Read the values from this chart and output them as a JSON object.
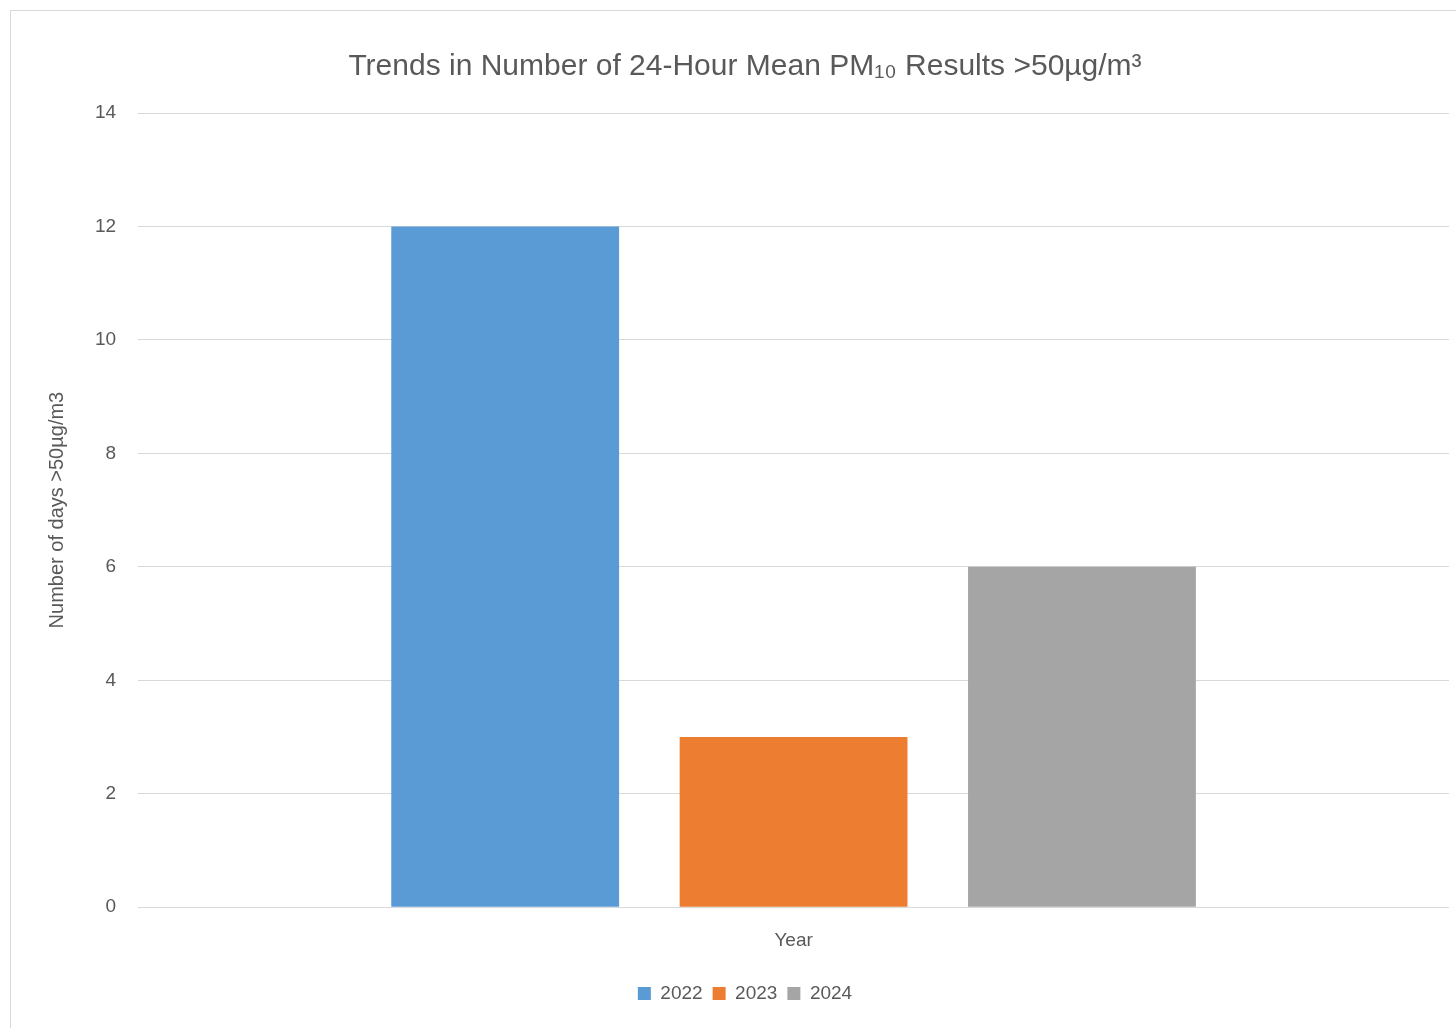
{
  "chart_data": {
    "type": "bar",
    "title": "Trends in Number of 24-Hour Mean PM₁₀ Results >50µg/m³",
    "ylabel": "Number of days >50µg/m3",
    "categories": [
      "Year"
    ],
    "series": [
      {
        "name": "2022",
        "color": "#5b9bd5",
        "values": [
          12
        ]
      },
      {
        "name": "2023",
        "color": "#ed7d31",
        "values": [
          3
        ]
      },
      {
        "name": "2024",
        "color": "#a5a5a5",
        "values": [
          6
        ]
      }
    ],
    "ylim": [
      0,
      14
    ],
    "yticks": [
      0,
      2,
      4,
      6,
      8,
      10,
      12,
      14
    ],
    "grid": "y",
    "legend": "bottom"
  }
}
